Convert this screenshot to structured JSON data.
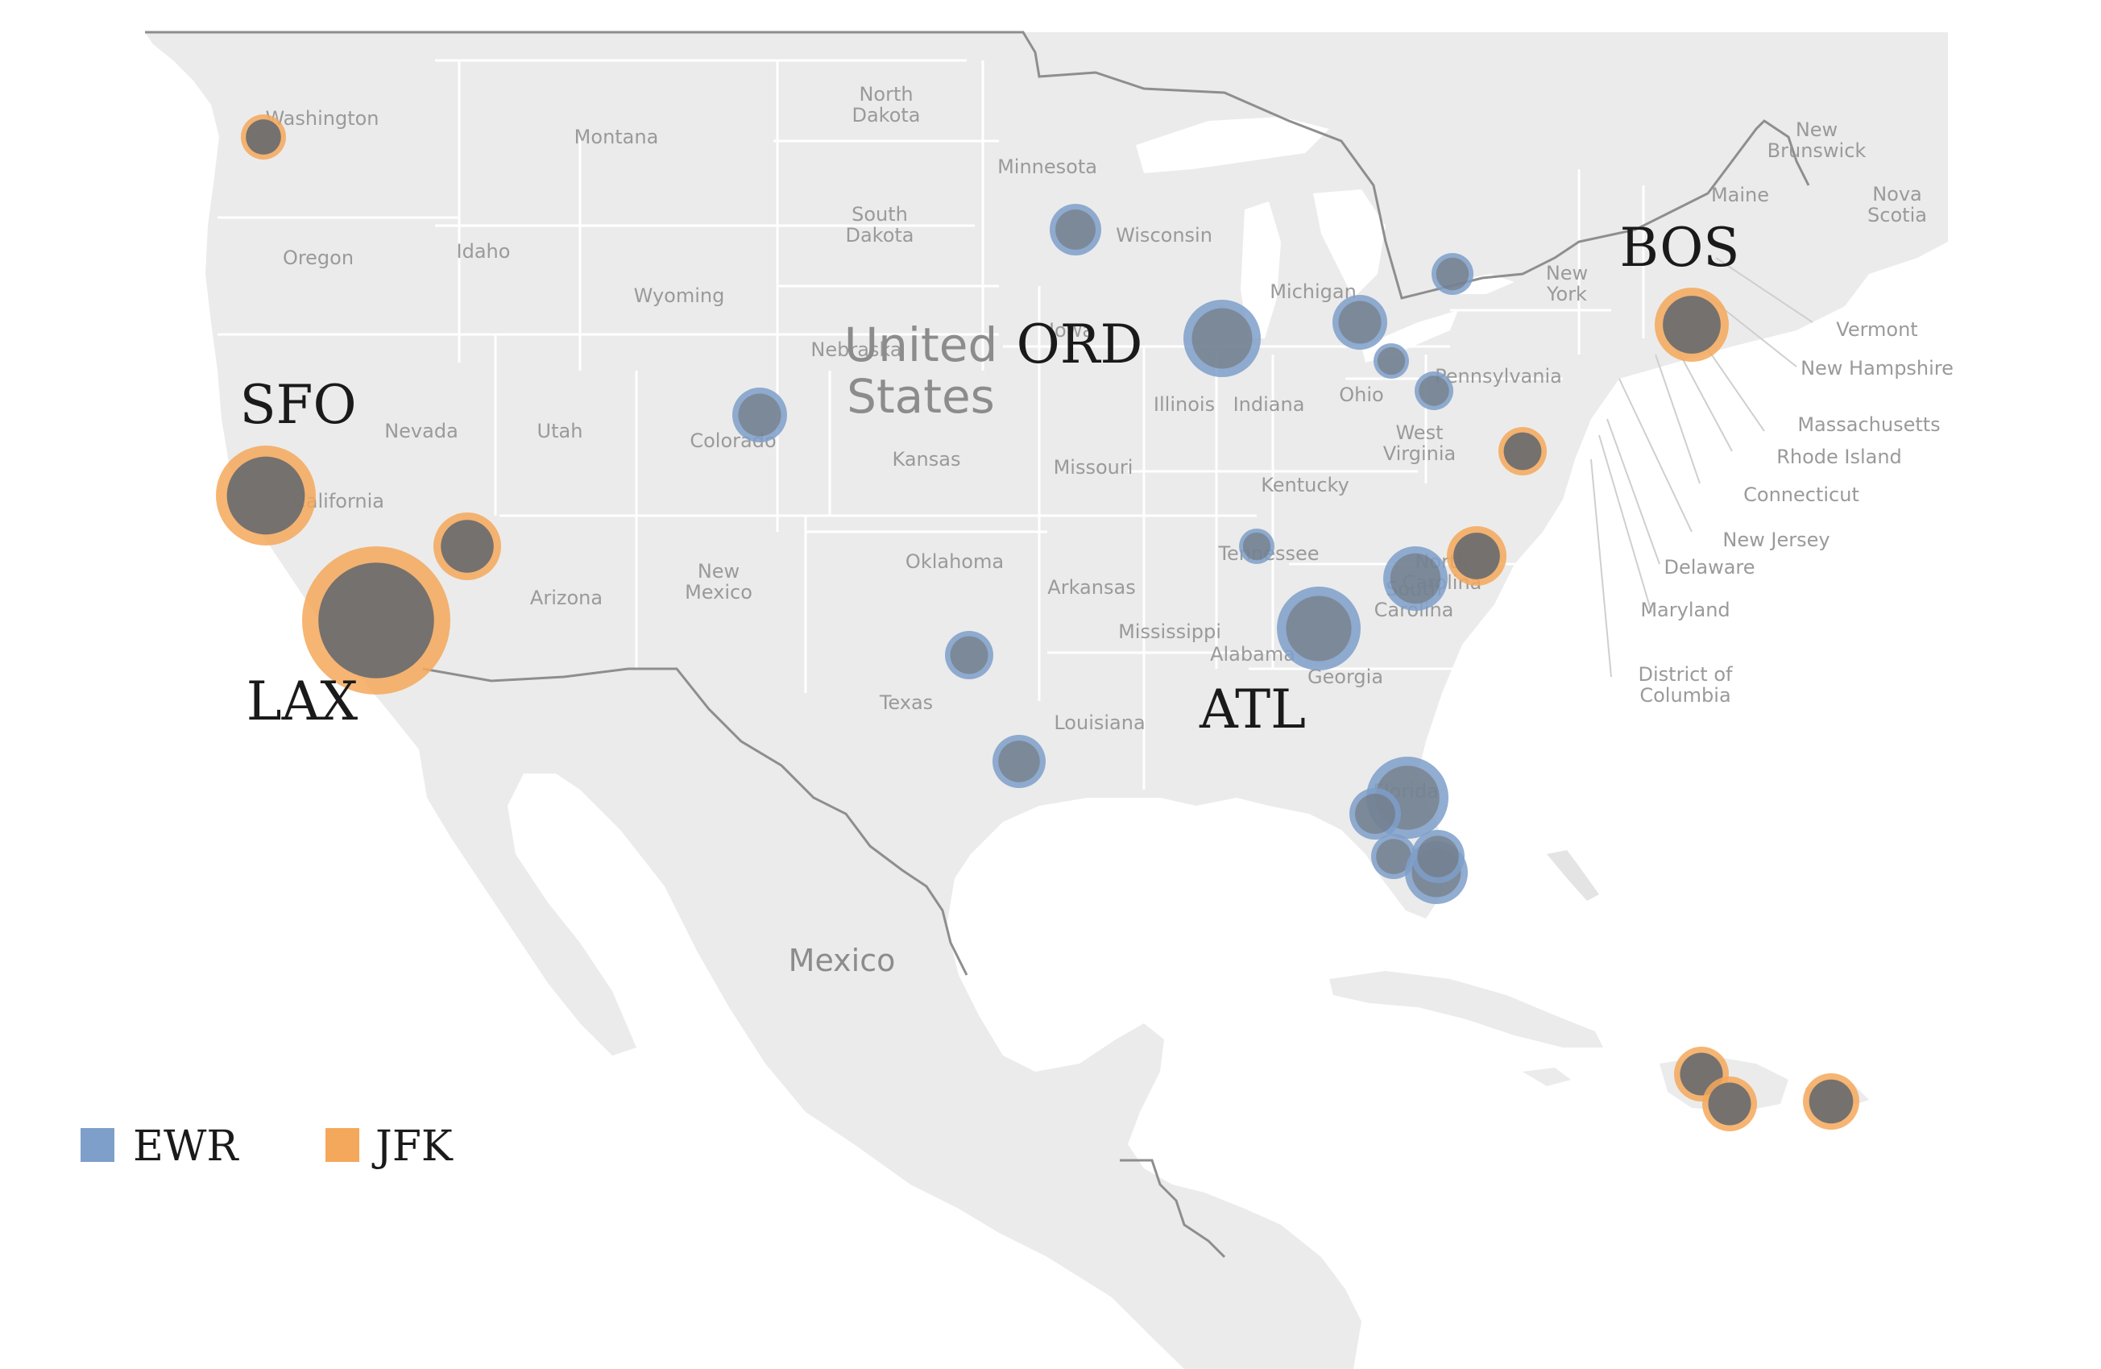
{
  "map": {
    "countries": [
      {
        "key": "us",
        "label": "United\nStates"
      },
      {
        "key": "mexico",
        "label": "Mexico"
      }
    ],
    "places": [
      {
        "key": "washington",
        "label": "Washington"
      },
      {
        "key": "montana",
        "label": "Montana"
      },
      {
        "key": "north-dakota",
        "label": "North\nDakota"
      },
      {
        "key": "minnesota",
        "label": "Minnesota"
      },
      {
        "key": "south-dakota",
        "label": "South\nDakota"
      },
      {
        "key": "wisconsin",
        "label": "Wisconsin"
      },
      {
        "key": "oregon",
        "label": "Oregon"
      },
      {
        "key": "idaho",
        "label": "Idaho"
      },
      {
        "key": "wyoming",
        "label": "Wyoming"
      },
      {
        "key": "nebraska",
        "label": "Nebraska"
      },
      {
        "key": "iowa",
        "label": "Iowa"
      },
      {
        "key": "michigan",
        "label": "Michigan"
      },
      {
        "key": "new-york",
        "label": "New\nYork"
      },
      {
        "key": "new-brunswick",
        "label": "New\nBrunswick"
      },
      {
        "key": "maine",
        "label": "Maine"
      },
      {
        "key": "nova-scotia",
        "label": "Nova\nScotia"
      },
      {
        "key": "vermont",
        "label": "Vermont"
      },
      {
        "key": "new-hampshire",
        "label": "New Hampshire"
      },
      {
        "key": "massachusetts",
        "label": "Massachusetts"
      },
      {
        "key": "rhode-island",
        "label": "Rhode Island"
      },
      {
        "key": "connecticut",
        "label": "Connecticut"
      },
      {
        "key": "new-jersey",
        "label": "New Jersey"
      },
      {
        "key": "delaware",
        "label": "Delaware"
      },
      {
        "key": "maryland",
        "label": "Maryland"
      },
      {
        "key": "district-of-columbia",
        "label": "District of\nColumbia"
      },
      {
        "key": "nevada",
        "label": "Nevada"
      },
      {
        "key": "utah",
        "label": "Utah"
      },
      {
        "key": "colorado",
        "label": "Colorado"
      },
      {
        "key": "kansas",
        "label": "Kansas"
      },
      {
        "key": "missouri",
        "label": "Missouri"
      },
      {
        "key": "illinois",
        "label": "Illinois"
      },
      {
        "key": "indiana",
        "label": "Indiana"
      },
      {
        "key": "ohio",
        "label": "Ohio"
      },
      {
        "key": "pennsylvania",
        "label": "Pennsylvania"
      },
      {
        "key": "west-virginia",
        "label": "West\nVirginia"
      },
      {
        "key": "kentucky",
        "label": "Kentucky"
      },
      {
        "key": "california",
        "label": "California"
      },
      {
        "key": "arizona",
        "label": "Arizona"
      },
      {
        "key": "new-mexico",
        "label": "New\nMexico"
      },
      {
        "key": "oklahoma",
        "label": "Oklahoma"
      },
      {
        "key": "arkansas",
        "label": "Arkansas"
      },
      {
        "key": "tennessee",
        "label": "Tennessee"
      },
      {
        "key": "north-carolina",
        "label": "North\nCarolina"
      },
      {
        "key": "south-carolina",
        "label": "South\nCarolina"
      },
      {
        "key": "mississippi",
        "label": "Mississippi"
      },
      {
        "key": "alabama",
        "label": "Alabama"
      },
      {
        "key": "georgia",
        "label": "Georgia"
      },
      {
        "key": "texas",
        "label": "Texas"
      },
      {
        "key": "louisiana",
        "label": "Louisiana"
      },
      {
        "key": "florida",
        "label": "Florida"
      }
    ],
    "colors": {
      "land": "#ebebeb",
      "water": "#ffffff",
      "border": "#ffffff",
      "intl_border": "#8e8e8e",
      "place_label": "#9a9a9a",
      "ewr": "#7e9fc9",
      "jfk": "#f4a85b",
      "overlap": "#6e6e6e"
    }
  },
  "airport_labels": [
    {
      "key": "sfo",
      "label": "SFO"
    },
    {
      "key": "lax",
      "label": "LAX"
    },
    {
      "key": "ord",
      "label": "ORD"
    },
    {
      "key": "atl",
      "label": "ATL"
    },
    {
      "key": "bos",
      "label": "BOS"
    }
  ],
  "legend": [
    {
      "key": "ewr",
      "label": "EWR",
      "color": "#7e9fc9"
    },
    {
      "key": "jfk",
      "label": "JFK",
      "color": "#f4a85b"
    }
  ],
  "destinations": [
    {
      "key": "sea",
      "ewr": 0,
      "jfk": 28
    },
    {
      "key": "sfo",
      "ewr": 0,
      "jfk": 62
    },
    {
      "key": "lax",
      "ewr": 0,
      "jfk": 92
    },
    {
      "key": "las",
      "ewr": 0,
      "jfk": 42
    },
    {
      "key": "den",
      "ewr": 34,
      "jfk": 0
    },
    {
      "key": "msp",
      "ewr": 32,
      "jfk": 0
    },
    {
      "key": "ord",
      "ewr": 48,
      "jfk": 0
    },
    {
      "key": "dtw",
      "ewr": 34,
      "jfk": 0
    },
    {
      "key": "buf",
      "ewr": 26,
      "jfk": 0
    },
    {
      "key": "cle",
      "ewr": 22,
      "jfk": 0
    },
    {
      "key": "pit",
      "ewr": 24,
      "jfk": 0
    },
    {
      "key": "iad",
      "ewr": 0,
      "jfk": 30
    },
    {
      "key": "bos",
      "ewr": 0,
      "jfk": 46
    },
    {
      "key": "bna",
      "ewr": 22,
      "jfk": 0
    },
    {
      "key": "rdu",
      "ewr": 0,
      "jfk": 37
    },
    {
      "key": "clt",
      "ewr": 40,
      "jfk": 0
    },
    {
      "key": "atl",
      "ewr": 52,
      "jfk": 0
    },
    {
      "key": "dfw",
      "ewr": 30,
      "jfk": 0
    },
    {
      "key": "iah",
      "ewr": 33,
      "jfk": 0
    },
    {
      "key": "mco",
      "ewr": 51,
      "jfk": 0
    },
    {
      "key": "tpa",
      "ewr": 32,
      "jfk": 0
    },
    {
      "key": "rsw",
      "ewr": 28,
      "jfk": 0
    },
    {
      "key": "fll",
      "ewr": 39,
      "jfk": 0
    },
    {
      "key": "mia",
      "ewr": 33,
      "jfk": 0
    },
    {
      "key": "pop",
      "ewr": 0,
      "jfk": 34
    },
    {
      "key": "sdq",
      "ewr": 0,
      "jfk": 34
    },
    {
      "key": "sju",
      "ewr": 0,
      "jfk": 35
    }
  ]
}
